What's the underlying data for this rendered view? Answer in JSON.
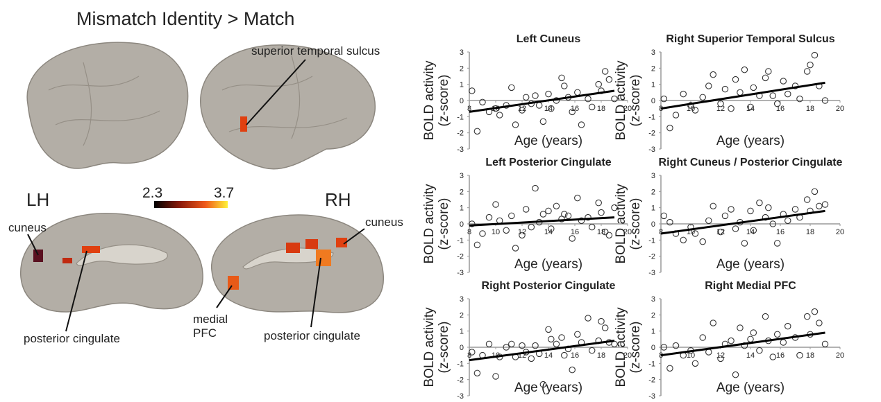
{
  "figure": {
    "title": "Mismatch Identity > Match",
    "hemispheres": [
      "LH",
      "RH"
    ],
    "colorbar": {
      "min": 2.3,
      "max": 3.7
    },
    "regions": {
      "sts": "superior temporal sulcus",
      "lh_cuneus": "cuneus",
      "lh_pc": "posterior cingulate",
      "mpfc_1": "medial",
      "mpfc_2": "PFC",
      "rh_cuneus": "cuneus",
      "rh_pc": "posterior cingulate"
    }
  },
  "chart_data": [
    {
      "type": "scatter",
      "title": "Left Cuneus",
      "xlabel": "Age (years)",
      "ylabel": [
        "BOLD activity",
        "(z-score)"
      ],
      "xlim": [
        8,
        20
      ],
      "ylim": [
        -3,
        3
      ],
      "xticks": [
        8,
        10,
        12,
        14,
        16,
        18,
        20
      ],
      "yticks": [
        -3,
        -2,
        -1,
        0,
        1,
        2,
        3
      ],
      "x": [
        8.2,
        8.6,
        9.0,
        9.5,
        10,
        10.3,
        10.8,
        11.2,
        11.5,
        12,
        12.3,
        12.7,
        13,
        13.3,
        13.6,
        14,
        14.2,
        14.6,
        15,
        15.2,
        15.5,
        15.8,
        16.2,
        16.5,
        17,
        17.3,
        17.8,
        18,
        18.3,
        18.6,
        19
      ],
      "values": [
        0.6,
        -1.9,
        -0.1,
        -0.7,
        -0.5,
        -0.9,
        -0.3,
        0.8,
        -1.5,
        -0.6,
        0.2,
        -0.2,
        0.3,
        -0.3,
        -1.3,
        0.4,
        -0.5,
        0,
        1.4,
        0.9,
        0.2,
        -0.7,
        0.5,
        -1.5,
        0.1,
        -0.4,
        1,
        0.6,
        1.8,
        1.3,
        0.1
      ],
      "trend_x": [
        8,
        19
      ],
      "trend_y": [
        -0.7,
        0.6
      ]
    },
    {
      "type": "scatter",
      "title": "Right Superior Temporal Sulcus",
      "xlabel": "Age (years)",
      "ylabel": [
        "BOLD activity",
        "(z-score)"
      ],
      "xlim": [
        8,
        20
      ],
      "ylim": [
        -3,
        3
      ],
      "xticks": [
        8,
        10,
        12,
        14,
        16,
        18,
        20
      ],
      "yticks": [
        -3,
        -2,
        -1,
        0,
        1,
        2,
        3
      ],
      "x": [
        8.2,
        8.6,
        9.0,
        9.5,
        10,
        10.3,
        10.8,
        11.2,
        11.5,
        12,
        12.3,
        12.7,
        13,
        13.3,
        13.6,
        14,
        14.2,
        14.6,
        15,
        15.2,
        15.5,
        15.8,
        16.2,
        16.5,
        17,
        17.3,
        17.8,
        18,
        18.3,
        18.6,
        19
      ],
      "values": [
        0.1,
        -1.7,
        -0.9,
        0.4,
        -0.3,
        -0.6,
        0.2,
        0.9,
        1.6,
        -0.2,
        0.7,
        -0.5,
        1.3,
        0.5,
        1.9,
        -0.4,
        0.8,
        0.3,
        1.4,
        1.8,
        0.3,
        -0.2,
        1.2,
        0.4,
        0.9,
        0.1,
        1.8,
        2.2,
        2.8,
        0.9,
        0
      ],
      "trend_x": [
        8,
        19
      ],
      "trend_y": [
        -0.5,
        1.1
      ]
    },
    {
      "type": "scatter",
      "title": "Left Posterior Cingulate",
      "xlabel": "Age (years)",
      "ylabel": [
        "BOLD activity",
        "(z-score)"
      ],
      "xlim": [
        8,
        20
      ],
      "ylim": [
        -3,
        3
      ],
      "xticks": [
        8,
        10,
        12,
        14,
        16,
        18,
        20
      ],
      "yticks": [
        -3,
        -2,
        -1,
        0,
        1,
        2,
        3
      ],
      "x": [
        8.2,
        8.6,
        9.0,
        9.5,
        10,
        10.3,
        10.8,
        11.2,
        11.5,
        12,
        12.3,
        12.7,
        13,
        13.3,
        13.6,
        14,
        14.2,
        14.6,
        15,
        15.2,
        15.5,
        15.8,
        16.2,
        16.5,
        17,
        17.3,
        17.8,
        18,
        18.3,
        18.6,
        19
      ],
      "values": [
        0,
        -1.3,
        -0.6,
        0.4,
        1.2,
        0.2,
        -0.4,
        0.5,
        -1.5,
        -0.7,
        0.9,
        -0.2,
        2.2,
        0.1,
        0.6,
        0.8,
        -0.3,
        1.1,
        0.3,
        0.6,
        0.5,
        -0.9,
        1.6,
        0.2,
        0.4,
        -0.2,
        1.3,
        0.7,
        -0.5,
        -0.7,
        1
      ],
      "trend_x": [
        8,
        19
      ],
      "trend_y": [
        -0.1,
        0.4
      ]
    },
    {
      "type": "scatter",
      "title": "Right Cuneus / Posterior Cingulate",
      "xlabel": "Age (years)",
      "ylabel": [
        "BOLD activity",
        "(z-score)"
      ],
      "xlim": [
        8,
        20
      ],
      "ylim": [
        -3,
        3
      ],
      "xticks": [
        8,
        10,
        12,
        14,
        16,
        18,
        20
      ],
      "yticks": [
        -3,
        -2,
        -1,
        0,
        1,
        2,
        3
      ],
      "x": [
        8.2,
        8.6,
        9.0,
        9.5,
        10,
        10.3,
        10.8,
        11.2,
        11.5,
        12,
        12.3,
        12.7,
        13,
        13.3,
        13.6,
        14,
        14.2,
        14.6,
        15,
        15.2,
        15.5,
        15.8,
        16.2,
        16.5,
        17,
        17.3,
        17.8,
        18,
        18.3,
        18.6,
        19
      ],
      "values": [
        0.5,
        0.1,
        -0.6,
        -1,
        -0.2,
        -0.6,
        -1.1,
        0.2,
        1.1,
        -0.5,
        0.5,
        0.9,
        -0.3,
        0.1,
        -1.2,
        0.8,
        -0.4,
        1.3,
        0.4,
        1,
        0,
        -1.2,
        0.6,
        0.2,
        0.9,
        0.4,
        1.5,
        0.8,
        2,
        1.1,
        1.2
      ],
      "trend_x": [
        8,
        19
      ],
      "trend_y": [
        -0.6,
        0.8
      ]
    },
    {
      "type": "scatter",
      "title": "Right Posterior Cingulate",
      "xlabel": "Age (years)",
      "ylabel": [
        "BOLD activity",
        "(z-score)"
      ],
      "xlim": [
        8,
        20
      ],
      "ylim": [
        -3,
        3
      ],
      "xticks": [
        8,
        10,
        12,
        14,
        16,
        18,
        20
      ],
      "yticks": [
        -3,
        -2,
        -1,
        0,
        1,
        2,
        3
      ],
      "x": [
        8.2,
        8.6,
        9.0,
        9.5,
        10,
        10.3,
        10.8,
        11.2,
        11.5,
        12,
        12.3,
        12.7,
        13,
        13.3,
        13.6,
        14,
        14.2,
        14.6,
        15,
        15.2,
        15.5,
        15.8,
        16.2,
        16.5,
        17,
        17.3,
        17.8,
        18,
        18.3,
        18.6,
        19
      ],
      "values": [
        -0.3,
        -1.6,
        -0.5,
        0.2,
        -1.8,
        -0.6,
        0,
        0.2,
        -0.6,
        0.1,
        -0.3,
        -0.7,
        0.1,
        -0.4,
        -2.3,
        1.1,
        0.5,
        0.2,
        0.6,
        -0.5,
        -0.1,
        -1.4,
        0.8,
        0.3,
        1.8,
        -0.2,
        0.4,
        1.6,
        1.2,
        0.3,
        0.2
      ],
      "trend_x": [
        8,
        19
      ],
      "trend_y": [
        -0.8,
        0.4
      ]
    },
    {
      "type": "scatter",
      "title": "Right Medial PFC",
      "xlabel": "Age (years)",
      "ylabel": [
        "BOLD activity",
        "(z-score)"
      ],
      "xlim": [
        8,
        20
      ],
      "ylim": [
        -3,
        3
      ],
      "xticks": [
        8,
        10,
        12,
        14,
        16,
        18,
        20
      ],
      "yticks": [
        -3,
        -2,
        -1,
        0,
        1,
        2,
        3
      ],
      "x": [
        8.2,
        8.6,
        9.0,
        9.5,
        10,
        10.3,
        10.8,
        11.2,
        11.5,
        12,
        12.3,
        12.7,
        13,
        13.3,
        13.6,
        14,
        14.2,
        14.6,
        15,
        15.2,
        15.5,
        15.8,
        16.2,
        16.5,
        17,
        17.3,
        17.8,
        18,
        18.3,
        18.6,
        19
      ],
      "values": [
        0,
        -1.3,
        0.1,
        -0.5,
        -0.2,
        -1,
        0.6,
        -0.3,
        1.5,
        -0.7,
        0.2,
        0.4,
        -1.7,
        1.2,
        0.1,
        0.5,
        0.9,
        -0.2,
        1.9,
        0.4,
        -0.6,
        0.8,
        0.3,
        1.3,
        0.6,
        -0.5,
        1.9,
        0.8,
        2.2,
        1.5,
        0.2
      ],
      "trend_x": [
        8,
        19
      ],
      "trend_y": [
        -0.5,
        0.9
      ]
    }
  ]
}
